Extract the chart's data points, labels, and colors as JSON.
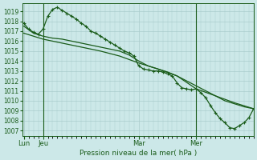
{
  "xlabel": "Pression niveau de la mer( hPa )",
  "background_color": "#cce8e8",
  "grid_color": "#aacccc",
  "line_color": "#1a5c1a",
  "ylim": [
    1006.5,
    1019.8
  ],
  "yticks": [
    1007,
    1008,
    1009,
    1010,
    1011,
    1012,
    1013,
    1014,
    1015,
    1016,
    1017,
    1018,
    1019
  ],
  "xtick_labels": [
    "Lun",
    "Jeu",
    "Mar",
    "Mer"
  ],
  "xtick_positions": [
    0,
    12,
    72,
    108
  ],
  "vline_positions": [
    12,
    108
  ],
  "xlim": [
    -1,
    144
  ],
  "line1_x": [
    0,
    3,
    6,
    9,
    12,
    15,
    18,
    21,
    24,
    27,
    30,
    33,
    36,
    39,
    42,
    45,
    48,
    51,
    54,
    57,
    60,
    63,
    66,
    69,
    72,
    75,
    78,
    81,
    84,
    87,
    90,
    93,
    96,
    99,
    102,
    105,
    108,
    111,
    114,
    117,
    120,
    123,
    126,
    129,
    132,
    135,
    138,
    141,
    144
  ],
  "line1_y": [
    1017.8,
    1017.2,
    1016.9,
    1016.7,
    1017.2,
    1018.5,
    1019.2,
    1019.4,
    1019.1,
    1018.8,
    1018.5,
    1018.2,
    1017.8,
    1017.5,
    1017.0,
    1016.8,
    1016.5,
    1016.2,
    1015.9,
    1015.6,
    1015.3,
    1015.0,
    1014.8,
    1014.5,
    1013.5,
    1013.2,
    1013.1,
    1013.0,
    1013.0,
    1012.9,
    1012.7,
    1012.5,
    1011.8,
    1011.3,
    1011.2,
    1011.1,
    1011.2,
    1010.8,
    1010.3,
    1009.5,
    1008.8,
    1008.2,
    1007.8,
    1007.3,
    1007.2,
    1007.5,
    1007.8,
    1008.3,
    1009.2
  ],
  "line2_x": [
    0,
    6,
    12,
    18,
    24,
    30,
    36,
    42,
    48,
    54,
    60,
    66,
    72,
    78,
    84,
    90,
    96,
    102,
    108,
    114,
    120,
    126,
    132,
    138,
    144
  ],
  "line2_y": [
    1017.5,
    1016.8,
    1016.5,
    1016.3,
    1016.2,
    1016.0,
    1015.8,
    1015.6,
    1015.4,
    1015.2,
    1015.0,
    1014.6,
    1014.0,
    1013.5,
    1013.2,
    1012.9,
    1012.5,
    1012.0,
    1011.5,
    1011.0,
    1010.5,
    1010.0,
    1009.7,
    1009.4,
    1009.2
  ],
  "line3_x": [
    0,
    12,
    24,
    36,
    48,
    60,
    72,
    84,
    96,
    108,
    120,
    132,
    144
  ],
  "line3_y": [
    1016.8,
    1016.2,
    1015.8,
    1015.4,
    1015.0,
    1014.5,
    1013.8,
    1013.2,
    1012.5,
    1011.2,
    1010.5,
    1009.8,
    1009.2
  ]
}
